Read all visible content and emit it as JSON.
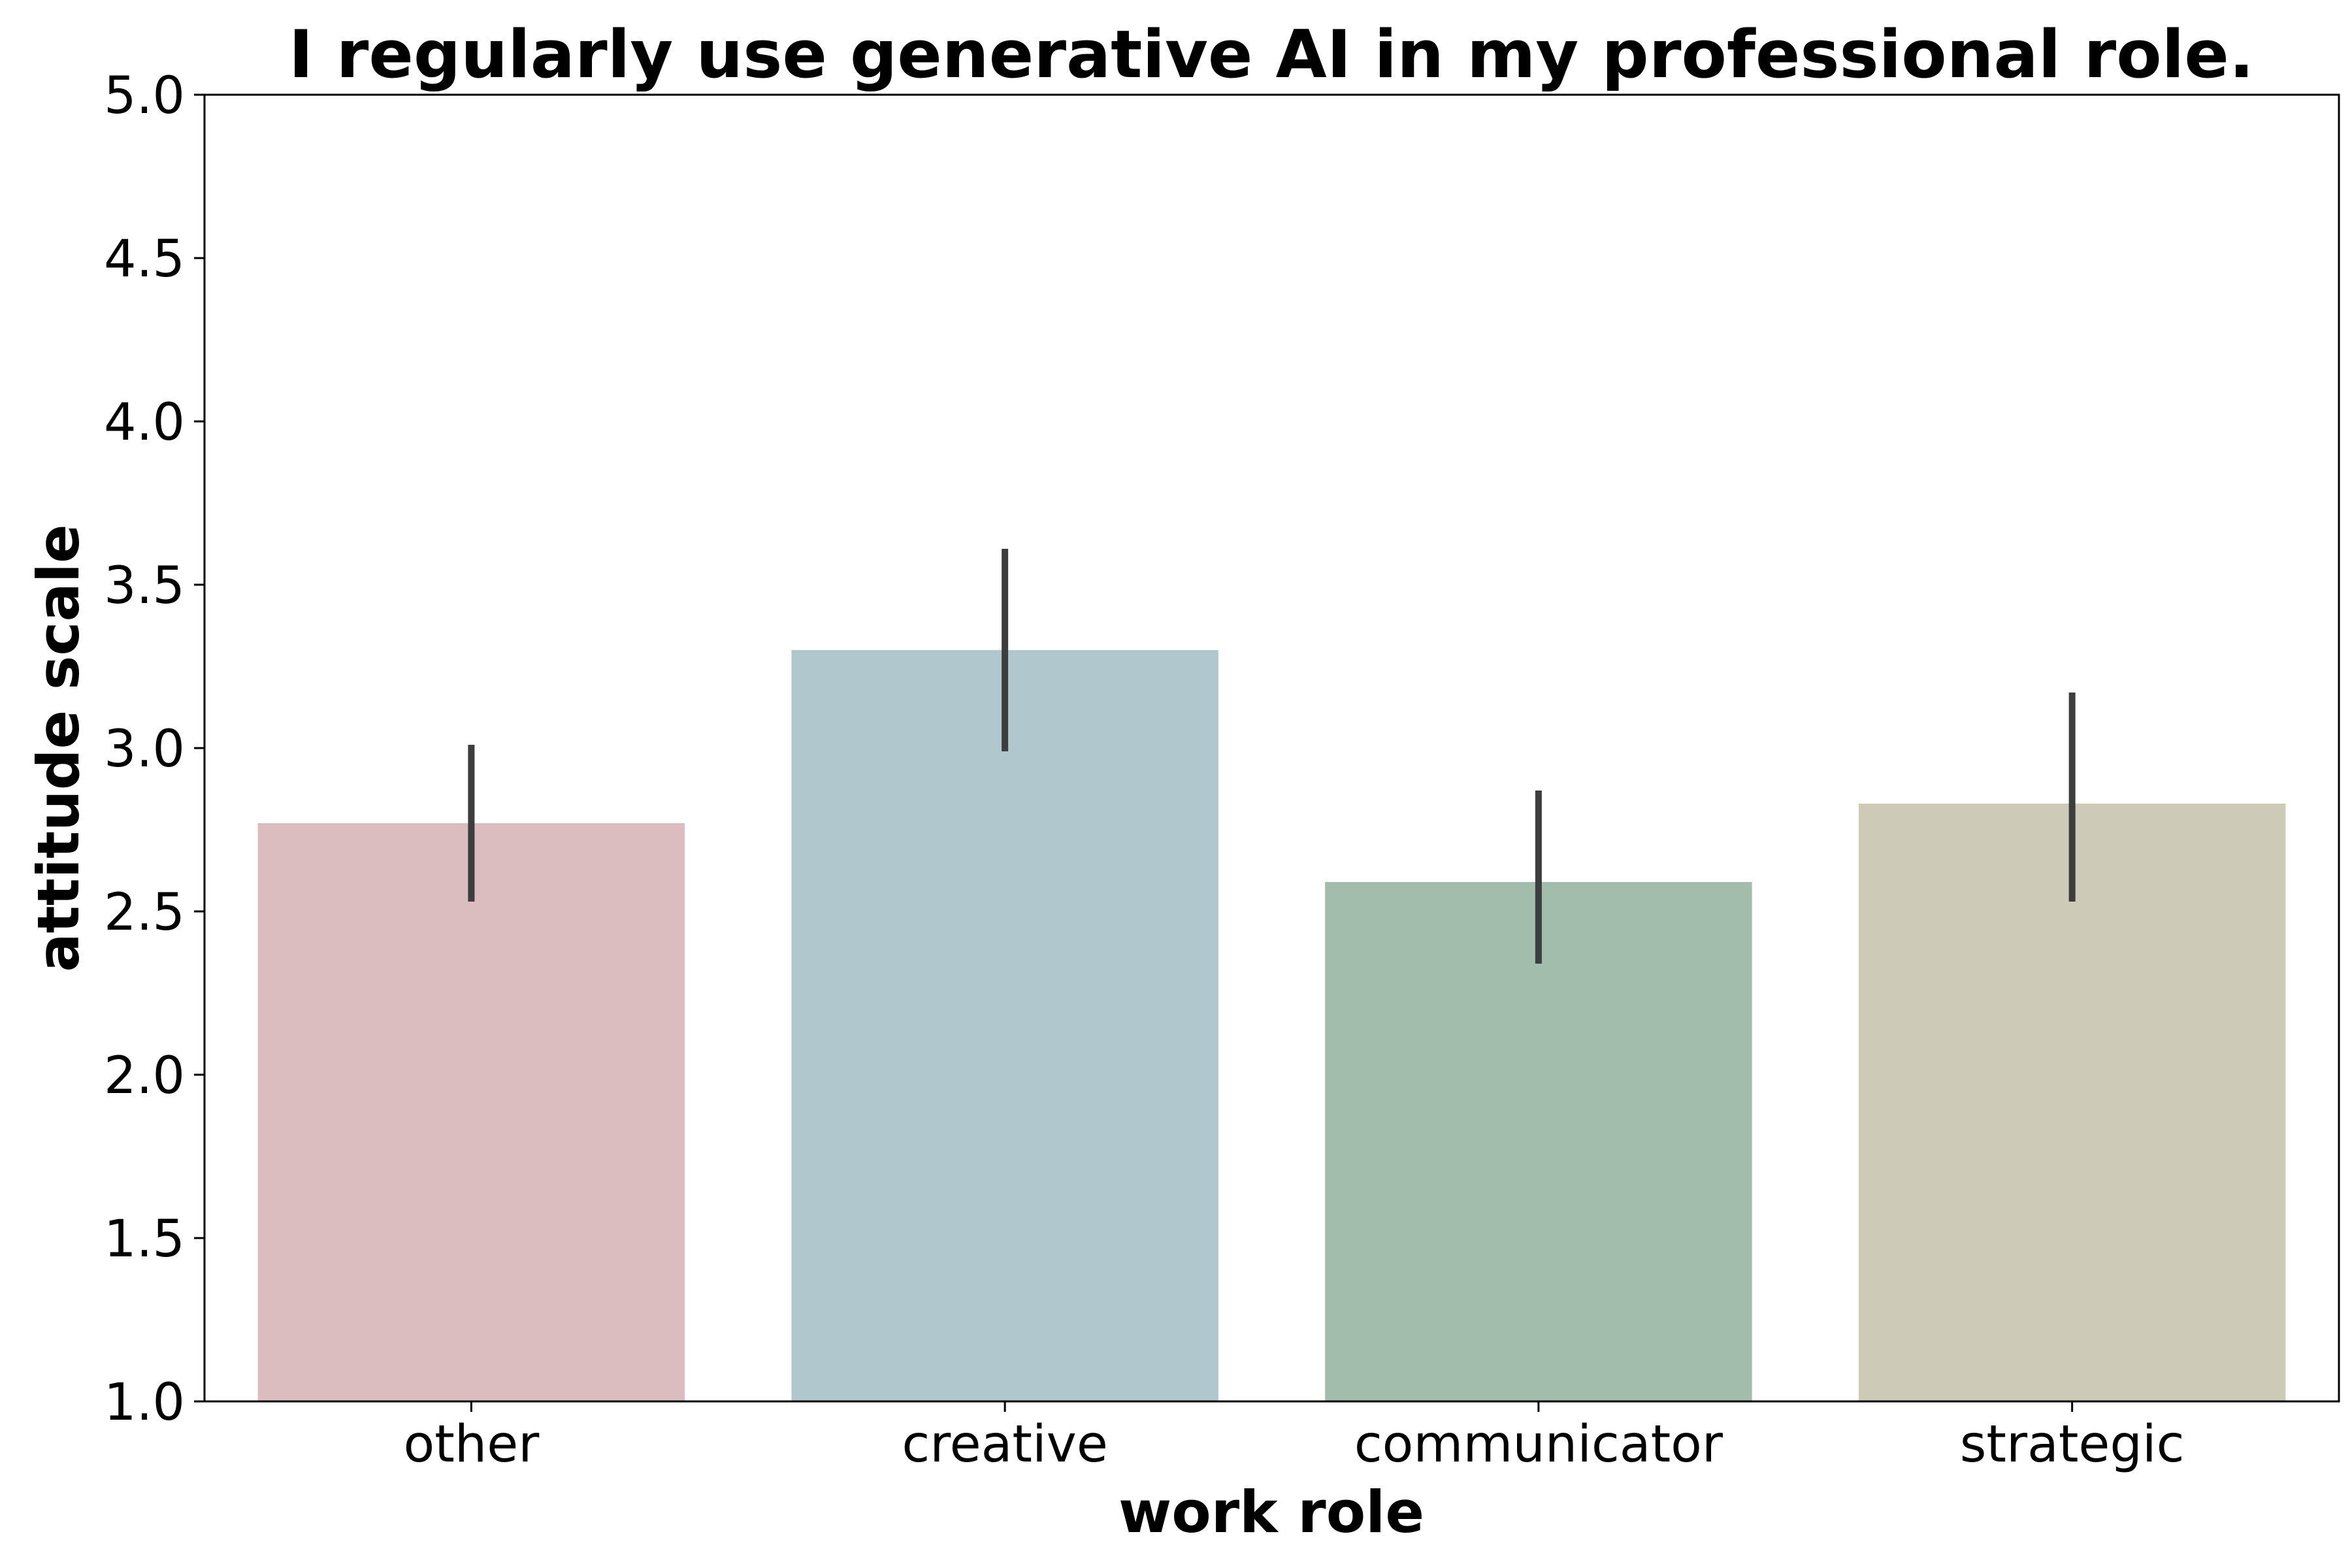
{
  "chart_data": {
    "type": "bar",
    "title": "I regularly use generative AI in my professional role.",
    "xlabel": "work role",
    "ylabel": "attitude scale",
    "categories": [
      "other",
      "creative",
      "communicator",
      "strategic"
    ],
    "values": [
      2.77,
      3.3,
      2.59,
      2.83
    ],
    "error_low": [
      2.53,
      2.99,
      2.34,
      2.53
    ],
    "error_high": [
      3.01,
      3.61,
      2.87,
      3.17
    ],
    "colors": [
      "#dbbcbf",
      "#b0c7ce",
      "#a2bdab",
      "#cdcab8"
    ],
    "error_color": "#3d3d3d",
    "ylim": [
      1.0,
      5.0
    ],
    "yticks": [
      "1.0",
      "1.5",
      "2.0",
      "2.5",
      "3.0",
      "3.5",
      "4.0",
      "4.5",
      "5.0"
    ],
    "grid": false,
    "legend": "none"
  }
}
